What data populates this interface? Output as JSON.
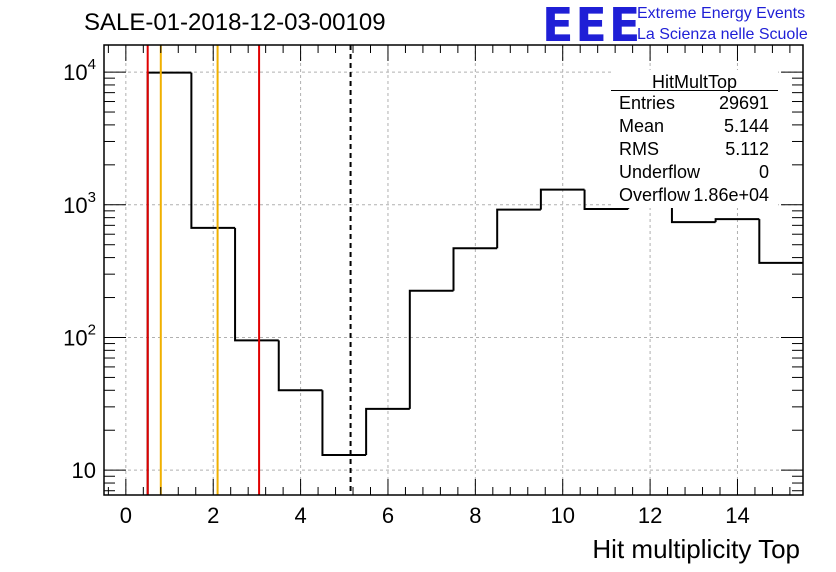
{
  "header": {
    "title": "SALE-01-2018-12-03-00109",
    "logo": "EEE",
    "logo_line1": "Extreme Energy Events",
    "logo_line2": "La Scienza nelle Scuole"
  },
  "stats_box": {
    "title": "HitMultTop",
    "rows": [
      {
        "key": "Entries",
        "value": "29691"
      },
      {
        "key": "Mean",
        "value": "5.144"
      },
      {
        "key": "RMS",
        "value": "5.112"
      },
      {
        "key": "Underflow",
        "value": "0"
      },
      {
        "key": "Overflow",
        "value": "1.86e+04"
      }
    ]
  },
  "colors": {
    "histogram": "#000000",
    "red_line": "#e00000",
    "orange_line": "#f0b000",
    "grid": "#b0b0b0"
  },
  "chart_data": {
    "type": "histogram",
    "xlabel": "Hit multiplicity Top",
    "ylabel": "",
    "xlim": [
      -0.5,
      15.5
    ],
    "ylim": [
      6.5,
      16000
    ],
    "yscale": "log",
    "grid": true,
    "x_ticks": [
      0,
      2,
      4,
      6,
      8,
      10,
      12,
      14
    ],
    "x_tick_labels": [
      "0",
      "2",
      "4",
      "6",
      "8",
      "10",
      "12",
      "14"
    ],
    "y_ticks": [
      10,
      100,
      1000,
      10000
    ],
    "y_tick_labels": [
      {
        "base": "10",
        "exp": ""
      },
      {
        "base": "10",
        "exp": "2"
      },
      {
        "base": "10",
        "exp": "3"
      },
      {
        "base": "10",
        "exp": "4"
      }
    ],
    "bins": {
      "edges": [
        0.5,
        1.5,
        2.5,
        3.5,
        4.5,
        5.5,
        6.5,
        7.5,
        8.5,
        9.5,
        10.5,
        11.5,
        12.5,
        13.5,
        14.5,
        15.5
      ],
      "counts": [
        9900,
        670,
        95,
        40,
        13,
        29,
        225,
        470,
        920,
        1300,
        930,
        1320,
        740,
        780,
        365
      ]
    },
    "vertical_lines": [
      {
        "x": 0.5,
        "color": "red",
        "style": "solid"
      },
      {
        "x": 0.8,
        "color": "orange",
        "style": "solid"
      },
      {
        "x": 2.1,
        "color": "orange",
        "style": "solid"
      },
      {
        "x": 3.05,
        "color": "red",
        "style": "solid"
      },
      {
        "x": 5.144,
        "color": "black",
        "style": "dashed"
      }
    ]
  }
}
